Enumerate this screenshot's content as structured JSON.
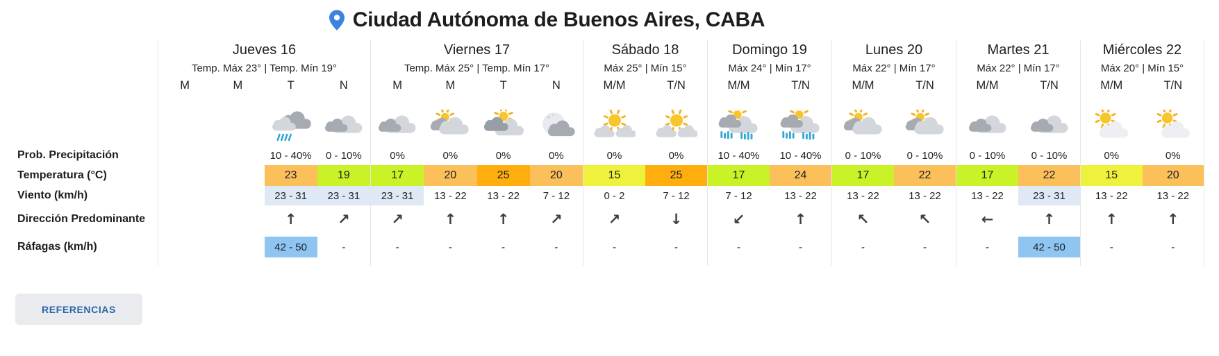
{
  "header": {
    "title": "Ciudad Autónoma de Buenos Aires, CABA",
    "pin_icon": "location-pin-icon"
  },
  "row_labels": {
    "precip": "Prob. Precipitación",
    "temp": "Temperatura (°C)",
    "wind": "Viento (km/h)",
    "direction": "Dirección Predominante",
    "gusts": "Ráfagas (km/h)"
  },
  "references_button_label": "REFERENCIAS",
  "colors": {
    "temp_yellow": "#eef23a",
    "temp_yellowgreen": "#c9f227",
    "temp_lightorange": "#fcc05a",
    "temp_orange": "#ffae0e",
    "wind_highlight": "#dfe9f5",
    "gust_highlight": "#8fc5f1",
    "pin_blue": "#3e82e0",
    "references_blue": "#2b65a7"
  },
  "days": [
    {
      "name": "Jueves 16",
      "temps": "Temp. Máx 23° | Temp. Mín 19°",
      "periods": [
        {
          "label": "M",
          "icon": "",
          "precip": "",
          "temp": "",
          "temp_color": "",
          "wind": "",
          "wind_highlight": false,
          "direction": "",
          "gust": "",
          "gust_highlight": false
        },
        {
          "label": "M",
          "icon": "",
          "precip": "",
          "temp": "",
          "temp_color": "",
          "wind": "",
          "wind_highlight": false,
          "direction": "",
          "gust": "",
          "gust_highlight": false
        },
        {
          "label": "T",
          "icon": "rain-cloud",
          "precip": "10 - 40%",
          "temp": "23",
          "temp_color": "lightorange",
          "wind": "23 - 31",
          "wind_highlight": true,
          "direction": "↑",
          "gust": "42 - 50",
          "gust_highlight": true
        },
        {
          "label": "N",
          "icon": "cloudy",
          "precip": "0 - 10%",
          "temp": "19",
          "temp_color": "yellowgreen",
          "wind": "23 - 31",
          "wind_highlight": true,
          "direction": "↗",
          "gust": "-",
          "gust_highlight": false
        }
      ]
    },
    {
      "name": "Viernes 17",
      "temps": "Temp. Máx 25° | Temp. Mín 17°",
      "periods": [
        {
          "label": "M",
          "icon": "cloudy",
          "precip": "0%",
          "temp": "17",
          "temp_color": "yellowgreen",
          "wind": "23 - 31",
          "wind_highlight": true,
          "direction": "↗",
          "gust": "-",
          "gust_highlight": false
        },
        {
          "label": "M",
          "icon": "partly-cloudy",
          "precip": "0%",
          "temp": "20",
          "temp_color": "lightorange",
          "wind": "13 - 22",
          "wind_highlight": false,
          "direction": "↑",
          "gust": "-",
          "gust_highlight": false
        },
        {
          "label": "T",
          "icon": "sun-clouds",
          "precip": "0%",
          "temp": "25",
          "temp_color": "orange",
          "wind": "13 - 22",
          "wind_highlight": false,
          "direction": "↑",
          "gust": "-",
          "gust_highlight": false
        },
        {
          "label": "N",
          "icon": "moon-cloud",
          "precip": "0%",
          "temp": "20",
          "temp_color": "lightorange",
          "wind": "7 - 12",
          "wind_highlight": false,
          "direction": "↗",
          "gust": "-",
          "gust_highlight": false
        }
      ]
    },
    {
      "name": "Sábado 18",
      "temps": "Máx 25° | Mín 15°",
      "periods": [
        {
          "label": "M/M",
          "icon": "sun-cloud",
          "precip": "0%",
          "temp": "15",
          "temp_color": "yellow",
          "wind": "0 - 2",
          "wind_highlight": false,
          "direction": "↗",
          "gust": "-",
          "gust_highlight": false
        },
        {
          "label": "T/N",
          "icon": "sun-cloud",
          "precip": "0%",
          "temp": "25",
          "temp_color": "orange",
          "wind": "7 - 12",
          "wind_highlight": false,
          "direction": "↓",
          "gust": "-",
          "gust_highlight": false
        }
      ]
    },
    {
      "name": "Domingo 19",
      "temps": "Máx 24° | Mín 17°",
      "periods": [
        {
          "label": "M/M",
          "icon": "sun-shower",
          "precip": "10 - 40%",
          "temp": "17",
          "temp_color": "yellowgreen",
          "wind": "7 - 12",
          "wind_highlight": false,
          "direction": "↙",
          "gust": "-",
          "gust_highlight": false
        },
        {
          "label": "T/N",
          "icon": "sun-shower",
          "precip": "10 - 40%",
          "temp": "24",
          "temp_color": "lightorange",
          "wind": "13 - 22",
          "wind_highlight": false,
          "direction": "↑",
          "gust": "-",
          "gust_highlight": false
        }
      ]
    },
    {
      "name": "Lunes 20",
      "temps": "Máx 22° | Mín 17°",
      "periods": [
        {
          "label": "M/M",
          "icon": "partly-cloudy",
          "precip": "0 - 10%",
          "temp": "17",
          "temp_color": "yellowgreen",
          "wind": "13 - 22",
          "wind_highlight": false,
          "direction": "↖",
          "gust": "-",
          "gust_highlight": false
        },
        {
          "label": "T/N",
          "icon": "partly-cloudy",
          "precip": "0 - 10%",
          "temp": "22",
          "temp_color": "lightorange",
          "wind": "13 - 22",
          "wind_highlight": false,
          "direction": "↖",
          "gust": "-",
          "gust_highlight": false
        }
      ]
    },
    {
      "name": "Martes 21",
      "temps": "Máx 22° | Mín 17°",
      "periods": [
        {
          "label": "M/M",
          "icon": "cloudy",
          "precip": "0 - 10%",
          "temp": "17",
          "temp_color": "yellowgreen",
          "wind": "13 - 22",
          "wind_highlight": false,
          "direction": "←",
          "gust": "-",
          "gust_highlight": false
        },
        {
          "label": "T/N",
          "icon": "cloudy",
          "precip": "0 - 10%",
          "temp": "22",
          "temp_color": "lightorange",
          "wind": "23 - 31",
          "wind_highlight": true,
          "direction": "↑",
          "gust": "42 - 50",
          "gust_highlight": true
        }
      ]
    },
    {
      "name": "Miércoles 22",
      "temps": "Máx 20° | Mín 15°",
      "periods": [
        {
          "label": "M/M",
          "icon": "mostly-sunny",
          "precip": "0%",
          "temp": "15",
          "temp_color": "yellow",
          "wind": "13 - 22",
          "wind_highlight": false,
          "direction": "↑",
          "gust": "-",
          "gust_highlight": false
        },
        {
          "label": "T/N",
          "icon": "mostly-sunny",
          "precip": "0%",
          "temp": "20",
          "temp_color": "lightorange",
          "wind": "13 - 22",
          "wind_highlight": false,
          "direction": "↑",
          "gust": "-",
          "gust_highlight": false
        }
      ]
    }
  ]
}
